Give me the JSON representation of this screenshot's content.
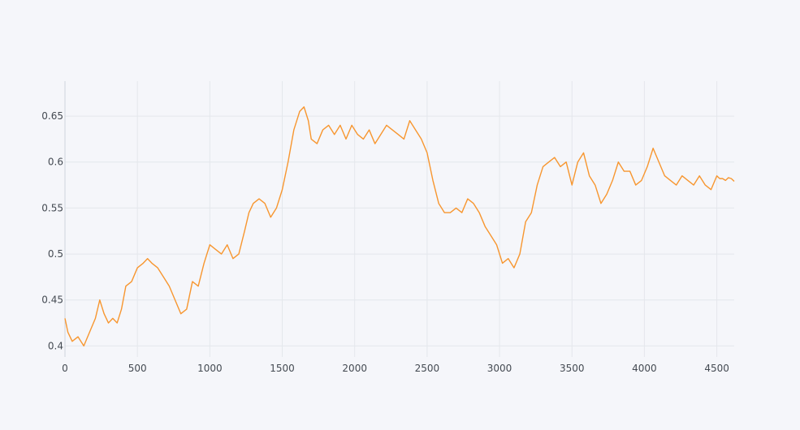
{
  "chart_data": {
    "type": "line",
    "title": "",
    "xlabel": "",
    "ylabel": "",
    "xlim": [
      0,
      4620
    ],
    "ylim": [
      0.388,
      0.688
    ],
    "grid": true,
    "legend": "none",
    "x_ticks": [
      0,
      500,
      1000,
      1500,
      2000,
      2500,
      3000,
      3500,
      4000,
      4500
    ],
    "x_tick_labels": [
      "0",
      "500",
      "1000",
      "1500",
      "2000",
      "2500",
      "3000",
      "3500",
      "4000",
      "4500"
    ],
    "y_ticks": [
      0.4,
      0.45,
      0.5,
      0.55,
      0.6,
      0.65
    ],
    "y_tick_labels": [
      "0.4",
      "0.45",
      "0.5",
      "0.55",
      "0.6",
      "0.65"
    ],
    "series": [
      {
        "color": "#f7962f",
        "x": [
          0,
          20,
          50,
          90,
          130,
          170,
          210,
          240,
          270,
          300,
          330,
          360,
          390,
          420,
          460,
          500,
          540,
          570,
          600,
          640,
          680,
          720,
          760,
          800,
          840,
          880,
          920,
          960,
          1000,
          1040,
          1080,
          1120,
          1160,
          1200,
          1240,
          1270,
          1300,
          1340,
          1380,
          1420,
          1460,
          1500,
          1540,
          1580,
          1620,
          1650,
          1680,
          1700,
          1740,
          1780,
          1820,
          1860,
          1900,
          1940,
          1980,
          2020,
          2060,
          2100,
          2140,
          2180,
          2220,
          2260,
          2300,
          2340,
          2380,
          2420,
          2460,
          2500,
          2540,
          2580,
          2620,
          2660,
          2700,
          2740,
          2780,
          2820,
          2860,
          2900,
          2940,
          2980,
          3020,
          3060,
          3100,
          3140,
          3180,
          3220,
          3260,
          3300,
          3340,
          3380,
          3420,
          3460,
          3500,
          3540,
          3580,
          3620,
          3660,
          3700,
          3740,
          3780,
          3820,
          3860,
          3900,
          3940,
          3980,
          4020,
          4060,
          4100,
          4140,
          4180,
          4220,
          4260,
          4300,
          4340,
          4380,
          4420,
          4460,
          4500,
          4520,
          4540,
          4560,
          4580,
          4600,
          4620
        ],
        "y": [
          0.43,
          0.415,
          0.405,
          0.41,
          0.4,
          0.415,
          0.43,
          0.45,
          0.435,
          0.425,
          0.43,
          0.425,
          0.44,
          0.465,
          0.47,
          0.485,
          0.49,
          0.495,
          0.49,
          0.485,
          0.475,
          0.465,
          0.45,
          0.435,
          0.44,
          0.47,
          0.465,
          0.49,
          0.51,
          0.505,
          0.5,
          0.51,
          0.495,
          0.5,
          0.525,
          0.545,
          0.555,
          0.56,
          0.555,
          0.54,
          0.55,
          0.57,
          0.6,
          0.635,
          0.655,
          0.66,
          0.645,
          0.625,
          0.62,
          0.635,
          0.64,
          0.63,
          0.64,
          0.625,
          0.64,
          0.63,
          0.625,
          0.635,
          0.62,
          0.63,
          0.64,
          0.635,
          0.63,
          0.625,
          0.645,
          0.635,
          0.625,
          0.61,
          0.58,
          0.555,
          0.545,
          0.545,
          0.55,
          0.545,
          0.56,
          0.555,
          0.545,
          0.53,
          0.52,
          0.51,
          0.49,
          0.495,
          0.485,
          0.5,
          0.535,
          0.545,
          0.575,
          0.595,
          0.6,
          0.605,
          0.595,
          0.6,
          0.575,
          0.6,
          0.61,
          0.585,
          0.575,
          0.555,
          0.565,
          0.58,
          0.6,
          0.59,
          0.59,
          0.575,
          0.58,
          0.595,
          0.615,
          0.6,
          0.585,
          0.58,
          0.575,
          0.585,
          0.58,
          0.575,
          0.585,
          0.575,
          0.57,
          0.585,
          0.582,
          0.582,
          0.58,
          0.583,
          0.582,
          0.579
        ]
      }
    ]
  }
}
